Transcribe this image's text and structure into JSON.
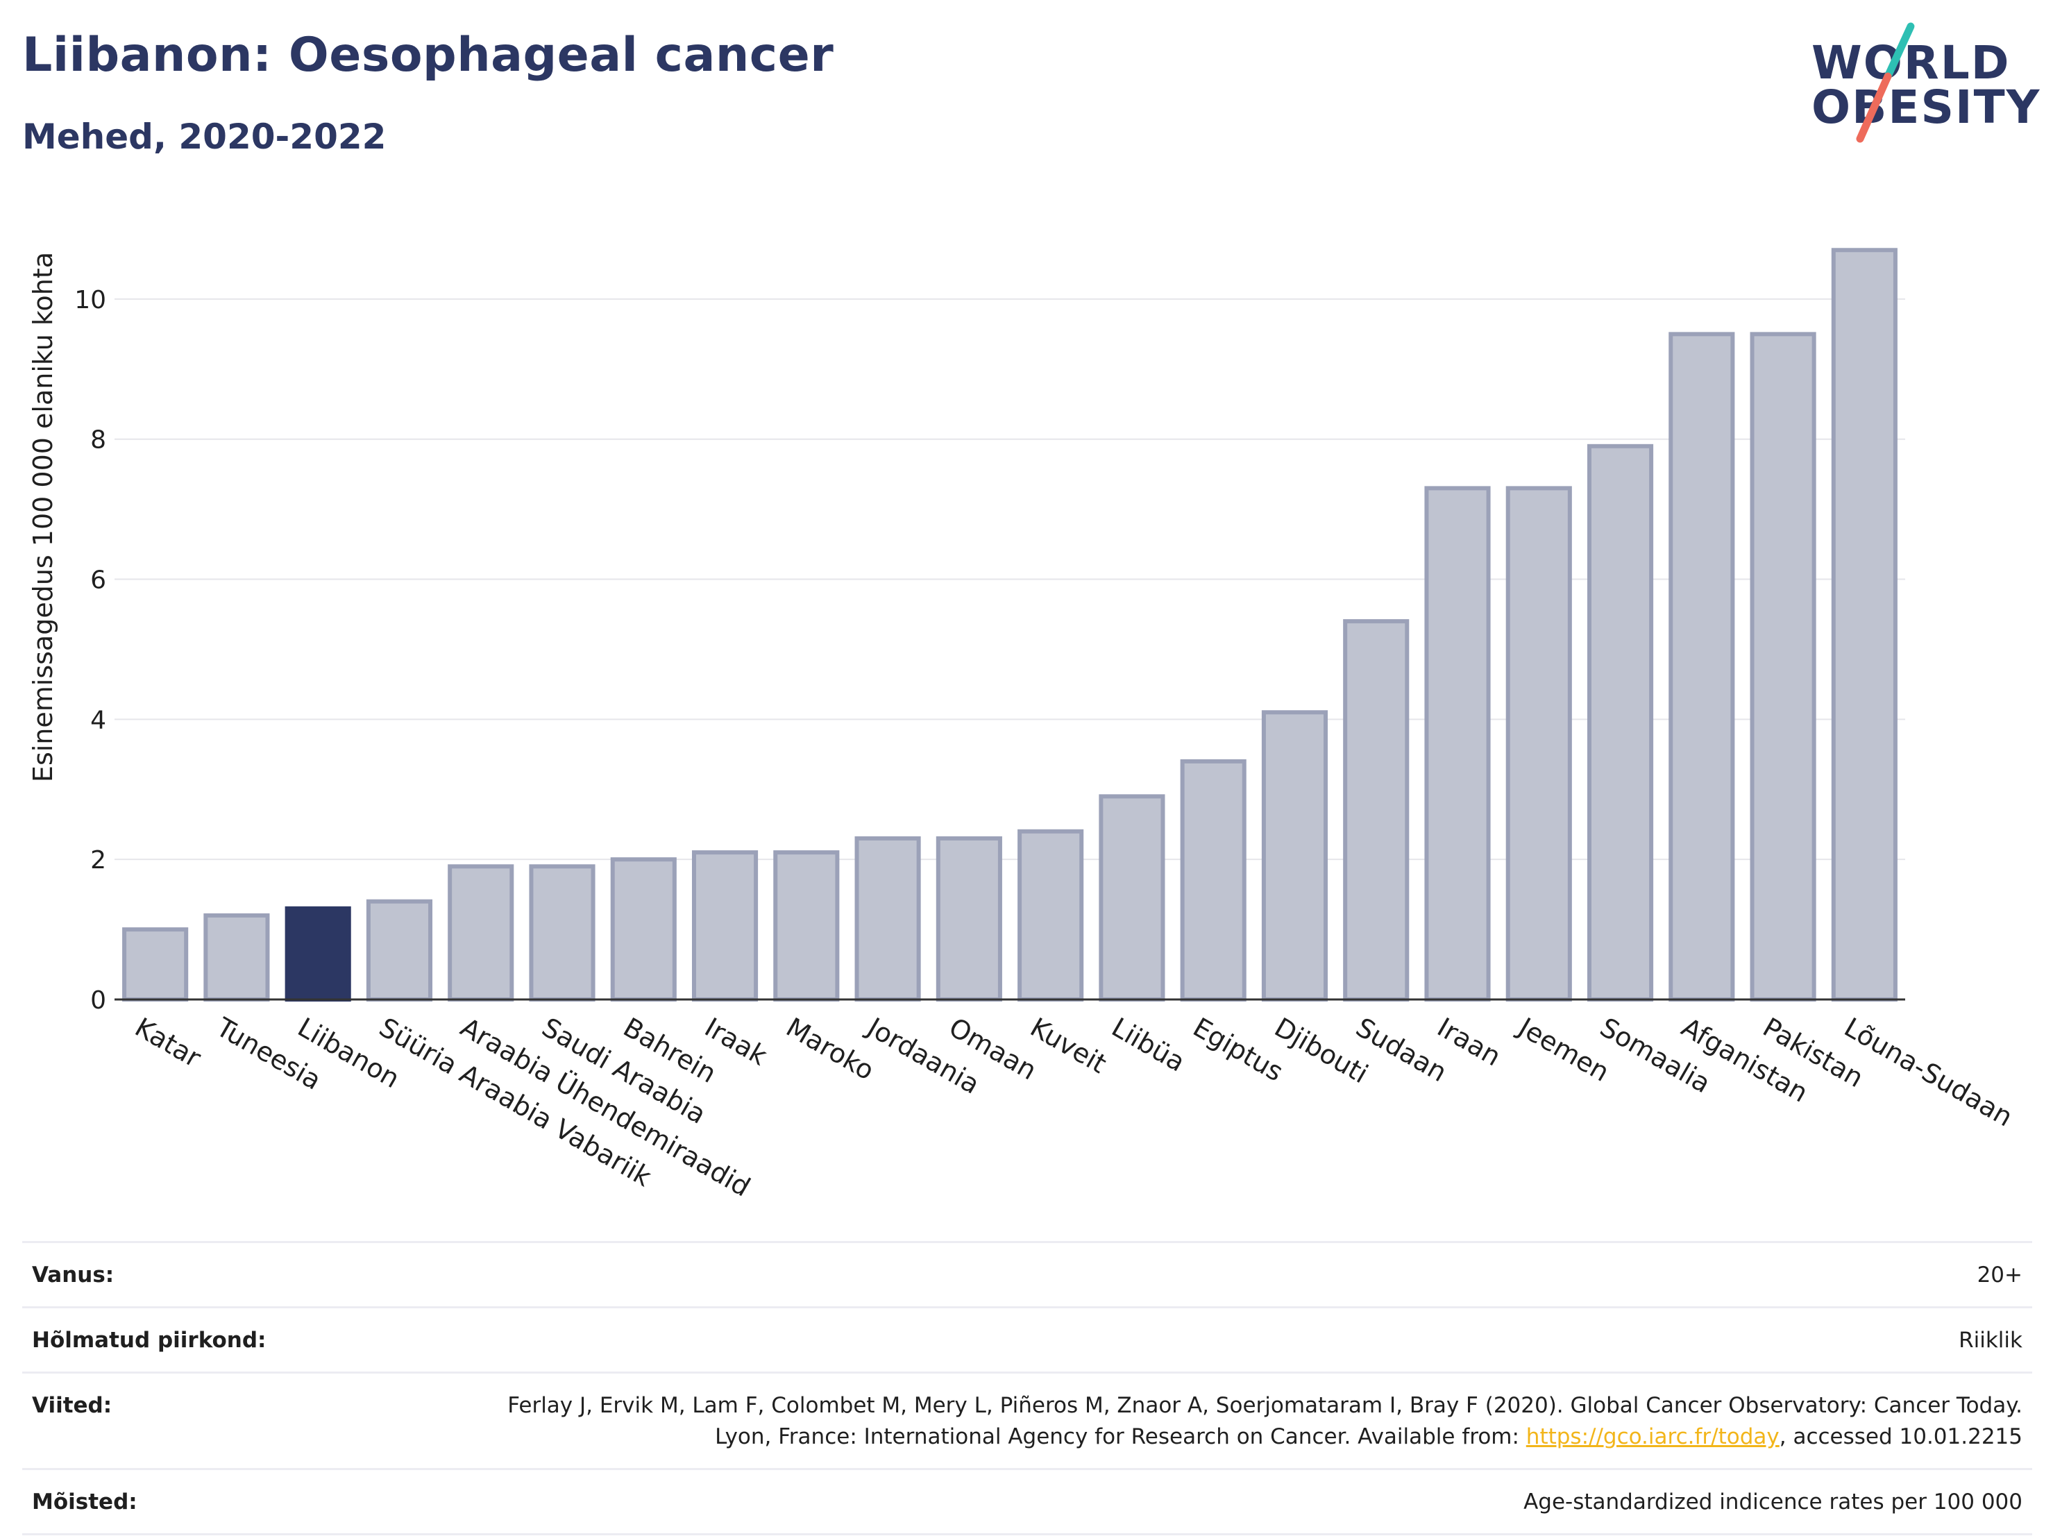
{
  "header": {
    "title": "Liibanon: Oesophageal cancer",
    "subtitle": "Mehed, 2020-2022"
  },
  "logo": {
    "line1": "WORLD",
    "line2": "OBESITY",
    "colors": {
      "text": "#2c3763",
      "slash_top": "#2ebfb3",
      "slash_bottom": "#ee6b5b"
    }
  },
  "colors": {
    "bar": "#bfc3d0",
    "bar_border": "#9ba1b8",
    "highlight": "#2c3763",
    "grid": "#e6e6ea",
    "axis": "#333333"
  },
  "chart_data": {
    "type": "bar",
    "title": "Liibanon: Oesophageal cancer",
    "subtitle": "Mehed, 2020-2022",
    "ylabel": "Esinemissagedus 100 000 elaniku kohta",
    "xlabel": "",
    "ylim": [
      0,
      11
    ],
    "yticks": [
      0,
      2,
      4,
      6,
      8,
      10
    ],
    "grid": true,
    "highlight_category": "Liibanon",
    "categories": [
      "Katar",
      "Tuneesia",
      "Liibanon",
      "Süüria Araabia Vabariik",
      "Araabia Ühendemiraadid",
      "Saudi Araabia",
      "Bahrein",
      "Iraak",
      "Maroko",
      "Jordaania",
      "Omaan",
      "Kuveit",
      "Liibüa",
      "Egiptus",
      "Djibouti",
      "Sudaan",
      "Iraan",
      "Jeemen",
      "Somaalia",
      "Afganistan",
      "Pakistan",
      "Lõuna-Sudaan"
    ],
    "values": [
      1.0,
      1.2,
      1.3,
      1.4,
      1.9,
      1.9,
      2.0,
      2.1,
      2.1,
      2.3,
      2.3,
      2.4,
      2.9,
      3.4,
      4.1,
      5.4,
      7.3,
      7.3,
      7.9,
      9.5,
      9.5,
      10.7
    ]
  },
  "info": {
    "rows": [
      {
        "label": "Vanus:",
        "value": "20+"
      },
      {
        "label": "Hõlmatud piirkond:",
        "value": "Riiklik"
      },
      {
        "label": "Viited:",
        "value_before": "Ferlay J, Ervik M, Lam F, Colombet M, Mery L, Piñeros M, Znaor A, Soerjomataram I, Bray F (2020). Global Cancer Observatory: Cancer Today. Lyon, France: International Agency for Research on Cancer. Available from: ",
        "link": "https://gco.iarc.fr/today",
        "value_after": ", accessed 10.01.2215"
      },
      {
        "label": "Mõisted:",
        "value": "Age-standardized indicence rates per 100 000"
      }
    ]
  }
}
